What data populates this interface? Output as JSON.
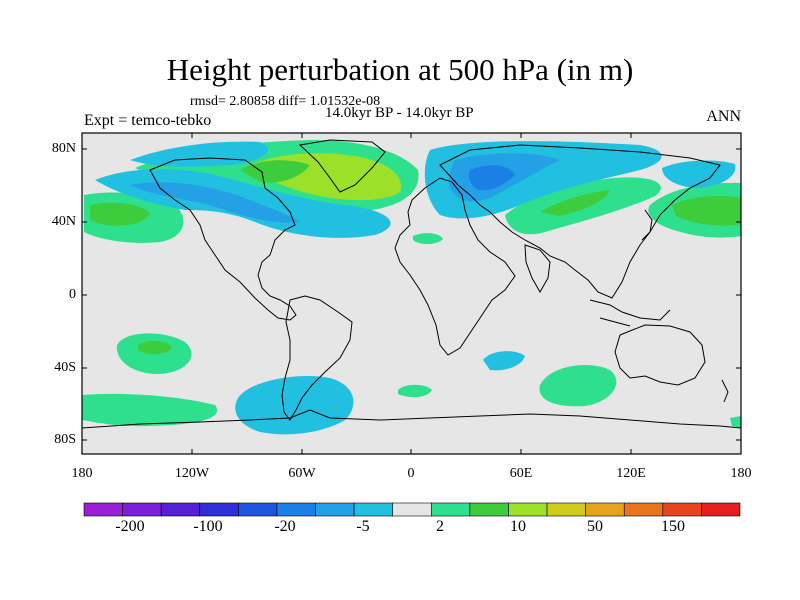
{
  "title": "Height perturbation at 500 hPa (in m)",
  "stats": "rmsd= 2.80858 diff= 1.01532e-08",
  "period": "14.0kyr BP - 14.0kyr BP",
  "expt": "Expt = temco-tebko",
  "season": "ANN",
  "lat_labels": [
    "80N",
    "40N",
    "0",
    "40S",
    "80S"
  ],
  "lon_labels": [
    "180",
    "120W",
    "60W",
    "0",
    "60E",
    "120E",
    "180"
  ],
  "colorbar": {
    "labels": [
      "-200",
      "-100",
      "-20",
      "-5",
      "2",
      "10",
      "50",
      "150"
    ],
    "colors": [
      "#9b1fd8",
      "#7c1fdc",
      "#5520d6",
      "#2e2fd8",
      "#1d55e0",
      "#1b7fe6",
      "#23a0e6",
      "#21c0e0",
      "#e6e6e6",
      "#2ee08e",
      "#3ccc3c",
      "#9ce02a",
      "#d0cc1c",
      "#e6a41c",
      "#e8741c",
      "#e8441c",
      "#e61e1e"
    ]
  },
  "map": {
    "background": "#e6e6e6",
    "neutral_color": "#e6e6e6"
  }
}
